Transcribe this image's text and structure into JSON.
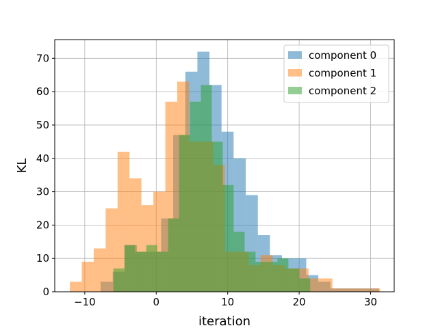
{
  "chart_data": {
    "type": "histogram",
    "xlabel": "iteration",
    "ylabel": "KL",
    "xlim": [
      -14.2,
      33.3
    ],
    "ylim": [
      0,
      75.6
    ],
    "xticks": [
      -10,
      0,
      10,
      20,
      30
    ],
    "yticks": [
      0,
      10,
      20,
      30,
      40,
      50,
      60,
      70
    ],
    "grid": true,
    "legend_position": "top-right",
    "alpha": 0.5,
    "series": [
      {
        "name": "component 0",
        "color": "#1f77b4",
        "edges": [
          -7.78,
          -6.09,
          -4.4,
          -2.7,
          -1.01,
          0.68,
          2.37,
          4.07,
          5.76,
          7.45,
          9.14,
          10.83,
          12.53,
          14.22,
          15.91,
          17.6,
          19.3,
          20.99,
          22.68,
          24.37,
          26.06,
          27.76,
          29.45,
          31.14
        ],
        "counts": [
          3,
          6,
          14,
          12,
          12,
          22,
          47,
          66,
          72,
          62,
          48,
          40,
          29,
          17,
          11,
          10,
          10,
          5,
          3,
          1,
          1,
          1,
          1
        ]
      },
      {
        "name": "component 1",
        "color": "#ff7f0e",
        "edges": [
          -12.09,
          -10.42,
          -8.75,
          -7.08,
          -5.41,
          -3.74,
          -2.07,
          -0.4,
          1.27,
          2.94,
          4.61,
          6.28,
          7.95,
          9.62,
          11.29,
          12.96,
          14.63,
          16.3,
          17.97,
          19.64,
          21.31,
          22.98,
          24.65,
          26.32,
          27.99,
          29.66,
          31.33
        ],
        "counts": [
          3,
          9,
          13,
          25,
          42,
          34,
          26,
          30,
          57,
          63,
          45,
          45,
          38,
          12,
          12,
          8,
          11,
          8,
          7,
          7,
          4,
          4,
          1,
          1,
          1,
          1
        ]
      },
      {
        "name": "component 2",
        "color": "#2ca02c",
        "edges": [
          -5.99,
          -4.46,
          -2.93,
          -1.4,
          0.13,
          1.66,
          3.19,
          4.72,
          6.25,
          7.78,
          9.31,
          10.84,
          12.37,
          13.9,
          15.43,
          16.96,
          18.49,
          20.02,
          21.55
        ],
        "counts": [
          7,
          14,
          12,
          14,
          12,
          22,
          47,
          57,
          62,
          45,
          32,
          18,
          12,
          9,
          9,
          10,
          7,
          4
        ]
      }
    ]
  }
}
